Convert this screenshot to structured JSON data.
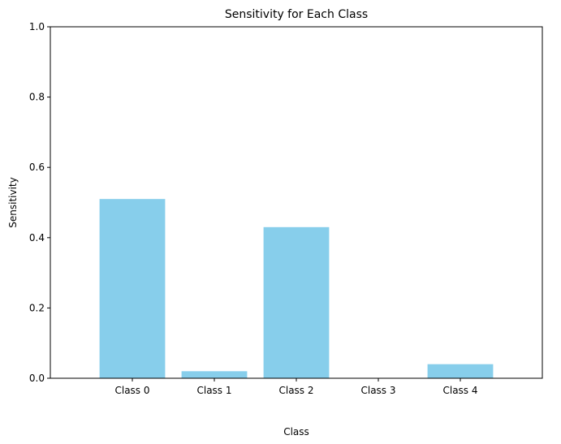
{
  "chart_data": {
    "type": "bar",
    "title": "Sensitivity for Each Class",
    "xlabel": "Class",
    "ylabel": "Sensitivity",
    "categories": [
      "Class 0",
      "Class 1",
      "Class 2",
      "Class 3",
      "Class 4"
    ],
    "values": [
      0.51,
      0.02,
      0.43,
      0.0,
      0.04
    ],
    "ylim": [
      0,
      1
    ],
    "yticks": [
      "0.0",
      "0.2",
      "0.4",
      "0.6",
      "0.8",
      "1.0"
    ],
    "grid": false,
    "bar_color": "#87ceeb"
  }
}
